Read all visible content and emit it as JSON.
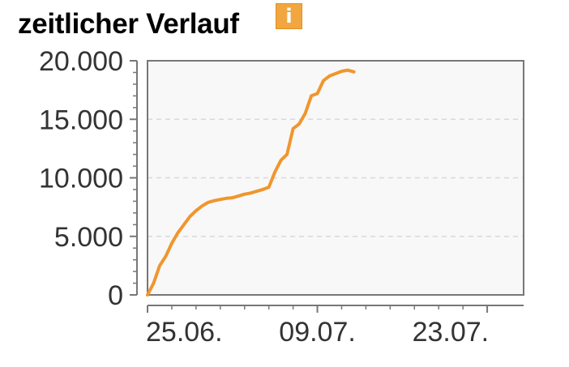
{
  "header": {
    "title": "zeitlicher Verlauf",
    "info_icon": "info-icon",
    "info_glyph": "i"
  },
  "colors": {
    "series": "#f0962e",
    "info_badge": "#f2a640",
    "plot_background": "#f8f8f8",
    "grid": "#d9d9d9",
    "axis": "#777777"
  },
  "chart_data": {
    "type": "line",
    "title": "",
    "xlabel": "",
    "ylabel": "",
    "grid": true,
    "x_axis": {
      "type": "date",
      "range": [
        "2024-06-25",
        "2024-07-26"
      ],
      "ticks": [
        {
          "value": "2024-06-25",
          "label": "25.06."
        },
        {
          "value": "2024-07-09",
          "label": "09.07."
        },
        {
          "value": "2024-07-23",
          "label": "23.07."
        }
      ],
      "minor_ticks": [
        "2024-06-25",
        "2024-06-27",
        "2024-06-29",
        "2024-07-01",
        "2024-07-03",
        "2024-07-05",
        "2024-07-07",
        "2024-07-09",
        "2024-07-11",
        "2024-07-13",
        "2024-07-15",
        "2024-07-17",
        "2024-07-19",
        "2024-07-21",
        "2024-07-23"
      ]
    },
    "y_axis": {
      "range": [
        0,
        20000
      ],
      "ticks": [
        {
          "value": 0,
          "label": "0"
        },
        {
          "value": 5000,
          "label": "5.000"
        },
        {
          "value": 10000,
          "label": "10.000"
        },
        {
          "value": 15000,
          "label": "15.000"
        },
        {
          "value": 20000,
          "label": "20.000"
        }
      ],
      "minor_ticks": [
        1000,
        2000,
        3000,
        4000,
        6000,
        7000,
        8000,
        9000,
        11000,
        12000,
        13000,
        14000,
        16000,
        17000,
        18000,
        19000
      ]
    },
    "series": [
      {
        "points": [
          {
            "x": "2024-06-25T00:00",
            "y": 0
          },
          {
            "x": "2024-06-25T12:00",
            "y": 1000
          },
          {
            "x": "2024-06-26T00:00",
            "y": 2500
          },
          {
            "x": "2024-06-26T12:00",
            "y": 3300
          },
          {
            "x": "2024-06-27T00:00",
            "y": 4400
          },
          {
            "x": "2024-06-27T12:00",
            "y": 5300
          },
          {
            "x": "2024-06-28T00:00",
            "y": 6000
          },
          {
            "x": "2024-06-28T12:00",
            "y": 6700
          },
          {
            "x": "2024-06-29T00:00",
            "y": 7200
          },
          {
            "x": "2024-06-29T12:00",
            "y": 7600
          },
          {
            "x": "2024-06-30T00:00",
            "y": 7900
          },
          {
            "x": "2024-06-30T12:00",
            "y": 8050
          },
          {
            "x": "2024-07-01T00:00",
            "y": 8150
          },
          {
            "x": "2024-07-01T12:00",
            "y": 8250
          },
          {
            "x": "2024-07-02T00:00",
            "y": 8300
          },
          {
            "x": "2024-07-02T12:00",
            "y": 8450
          },
          {
            "x": "2024-07-03T00:00",
            "y": 8600
          },
          {
            "x": "2024-07-03T12:00",
            "y": 8700
          },
          {
            "x": "2024-07-04T00:00",
            "y": 8850
          },
          {
            "x": "2024-07-04T12:00",
            "y": 9000
          },
          {
            "x": "2024-07-05T00:00",
            "y": 9200
          },
          {
            "x": "2024-07-05T12:00",
            "y": 10500
          },
          {
            "x": "2024-07-06T00:00",
            "y": 11500
          },
          {
            "x": "2024-07-06T12:00",
            "y": 12000
          },
          {
            "x": "2024-07-07T00:00",
            "y": 14200
          },
          {
            "x": "2024-07-07T12:00",
            "y": 14600
          },
          {
            "x": "2024-07-08T00:00",
            "y": 15500
          },
          {
            "x": "2024-07-08T12:00",
            "y": 17000
          },
          {
            "x": "2024-07-09T00:00",
            "y": 17200
          },
          {
            "x": "2024-07-09T12:00",
            "y": 18300
          },
          {
            "x": "2024-07-10T00:00",
            "y": 18700
          },
          {
            "x": "2024-07-10T12:00",
            "y": 18900
          },
          {
            "x": "2024-07-11T00:00",
            "y": 19100
          },
          {
            "x": "2024-07-11T12:00",
            "y": 19200
          },
          {
            "x": "2024-07-12T00:00",
            "y": 19050
          }
        ]
      }
    ]
  }
}
